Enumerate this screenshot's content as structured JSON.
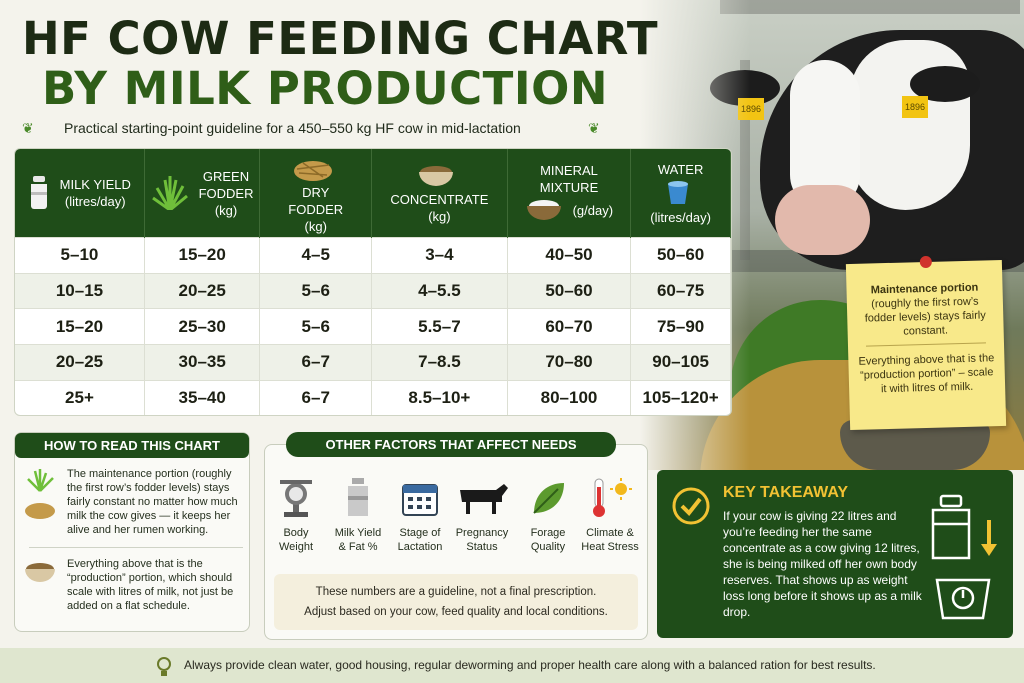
{
  "title": {
    "line1": "HF COW FEEDING CHART",
    "line2": "BY MILK PRODUCTION",
    "subtitle": "Practical starting-point guideline for a 450–550 kg HF cow in mid-lactation"
  },
  "table": {
    "headers": [
      {
        "label1": "MILK YIELD",
        "label2": "(litres/day)",
        "icon": "milk-can-icon"
      },
      {
        "label1": "GREEN",
        "label2": "FODDER",
        "label3": "(kg)",
        "icon": "grass-icon"
      },
      {
        "label1": "DRY",
        "label2": "FODDER",
        "label3": "(kg)",
        "icon": "hay-icon"
      },
      {
        "label1": "CONCENTRATE",
        "label2": "(kg)",
        "icon": "feed-bowl-icon"
      },
      {
        "label1": "MINERAL MIXTURE",
        "label2": "(g/day)",
        "icon": "mineral-bowl-icon"
      },
      {
        "label1": "WATER",
        "label2": "(litres/day)",
        "icon": "water-bucket-icon"
      }
    ],
    "rows": [
      [
        "5–10",
        "15–20",
        "4–5",
        "3–4",
        "40–50",
        "50–60"
      ],
      [
        "10–15",
        "20–25",
        "5–6",
        "4–5.5",
        "50–60",
        "60–75"
      ],
      [
        "15–20",
        "25–30",
        "5–6",
        "5.5–7",
        "60–70",
        "75–90"
      ],
      [
        "20–25",
        "30–35",
        "6–7",
        "7–8.5",
        "70–80",
        "90–105"
      ],
      [
        "25+",
        "35–40",
        "6–7",
        "8.5–10+",
        "80–100",
        "105–120+"
      ]
    ]
  },
  "how_to_read": {
    "heading": "HOW TO READ THIS CHART",
    "item1": "The maintenance portion (roughly the first row’s fodder levels) stays fairly constant no matter how much milk the cow gives — it keeps her alive and her rumen working.",
    "item2": "Everything above that is the “production” portion, which should scale with litres of milk, not just be added on a flat schedule."
  },
  "factors": {
    "heading": "OTHER FACTORS THAT AFFECT NEEDS",
    "items": [
      {
        "l1": "Body",
        "l2": "Weight",
        "icon": "scale-icon"
      },
      {
        "l1": "Milk Yield",
        "l2": "& Fat %",
        "icon": "milk-can-icon"
      },
      {
        "l1": "Stage of",
        "l2": "Lactation",
        "icon": "calendar-icon"
      },
      {
        "l1": "Pregnancy",
        "l2": "Status",
        "icon": "cow-icon"
      },
      {
        "l1": "Forage",
        "l2": "Quality",
        "icon": "leaf-icon"
      },
      {
        "l1": "Climate &",
        "l2": "Heat Stress",
        "icon": "thermometer-sun-icon"
      }
    ],
    "note1": "These numbers are a guideline, not a final prescription.",
    "note2": "Adjust based on your cow, feed quality and local conditions."
  },
  "takeaway": {
    "heading": "KEY TAKEAWAY",
    "body": "If your cow is giving 22 litres and you’re feeding her the same concentrate as a cow giving 12 litres, she is being milked off her own body reserves. That shows up as weight loss long before it shows up as a milk drop."
  },
  "sticky": {
    "p1_bold": "Maintenance portion",
    "p1": "(roughly the first row’s fodder levels) stays fairly constant.",
    "p2": "Everything above that is the “production portion” – scale it with litres of milk."
  },
  "footer": "Always provide clean water, good housing, regular deworming and proper health care along with a balanced ration for best results.",
  "ear_tag": "1896",
  "colors": {
    "dark_green": "#1f4d19",
    "title_green": "#2f5e18",
    "accent_yellow": "#f2c233",
    "sticky": "#f8e98a"
  }
}
